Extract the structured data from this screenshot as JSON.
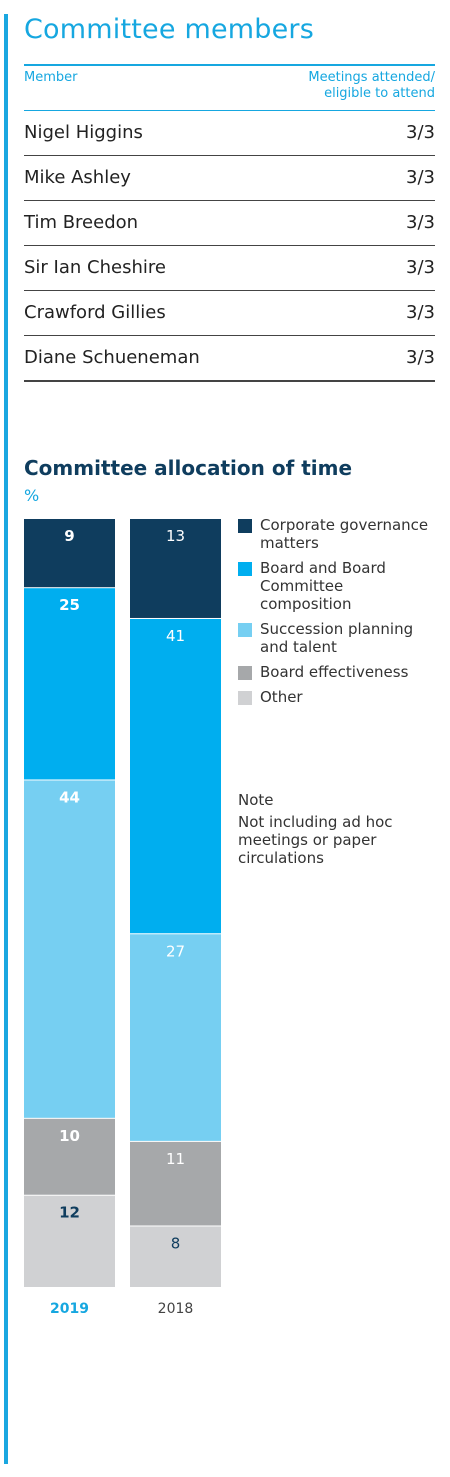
{
  "members": {
    "title": "Committee members",
    "header_member": "Member",
    "header_meetings_line1": "Meetings attended/",
    "header_meetings_line2": "eligible to attend",
    "rows": [
      {
        "name": "Nigel Higgins",
        "value": "3/3"
      },
      {
        "name": "Mike Ashley",
        "value": "3/3"
      },
      {
        "name": "Tim Breedon",
        "value": "3/3"
      },
      {
        "name": "Sir Ian Cheshire",
        "value": "3/3"
      },
      {
        "name": "Crawford Gillies",
        "value": "3/3"
      },
      {
        "name": "Diane Schueneman",
        "value": "3/3"
      }
    ]
  },
  "note": {
    "title": "Note",
    "body": "Not including ad hoc meetings or paper circulations"
  },
  "chart_data": {
    "type": "bar",
    "stacked": true,
    "title": "Committee allocation of time",
    "unit": "%",
    "categories": [
      "2019",
      "2018"
    ],
    "category_colors": [
      "#16a7e0",
      "#444444"
    ],
    "series": [
      {
        "name": "Corporate governance matters",
        "values": [
          9,
          13
        ],
        "color": "#0f3d5e",
        "label_color": "#ffffff"
      },
      {
        "name": "Board and Board Committee composition",
        "values": [
          25,
          41
        ],
        "color": "#00aeef",
        "label_color": "#ffffff"
      },
      {
        "name": "Succession planning and talent",
        "values": [
          44,
          27
        ],
        "color": "#76cff2",
        "label_color": "#ffffff"
      },
      {
        "name": "Board effectiveness",
        "values": [
          10,
          11
        ],
        "color": "#a6a8aa",
        "label_color": "#ffffff"
      },
      {
        "name": "Other",
        "values": [
          12,
          8
        ],
        "color": "#d0d1d3",
        "label_color": "#0f3d5e"
      }
    ],
    "legend_position": "right",
    "grid": false
  }
}
